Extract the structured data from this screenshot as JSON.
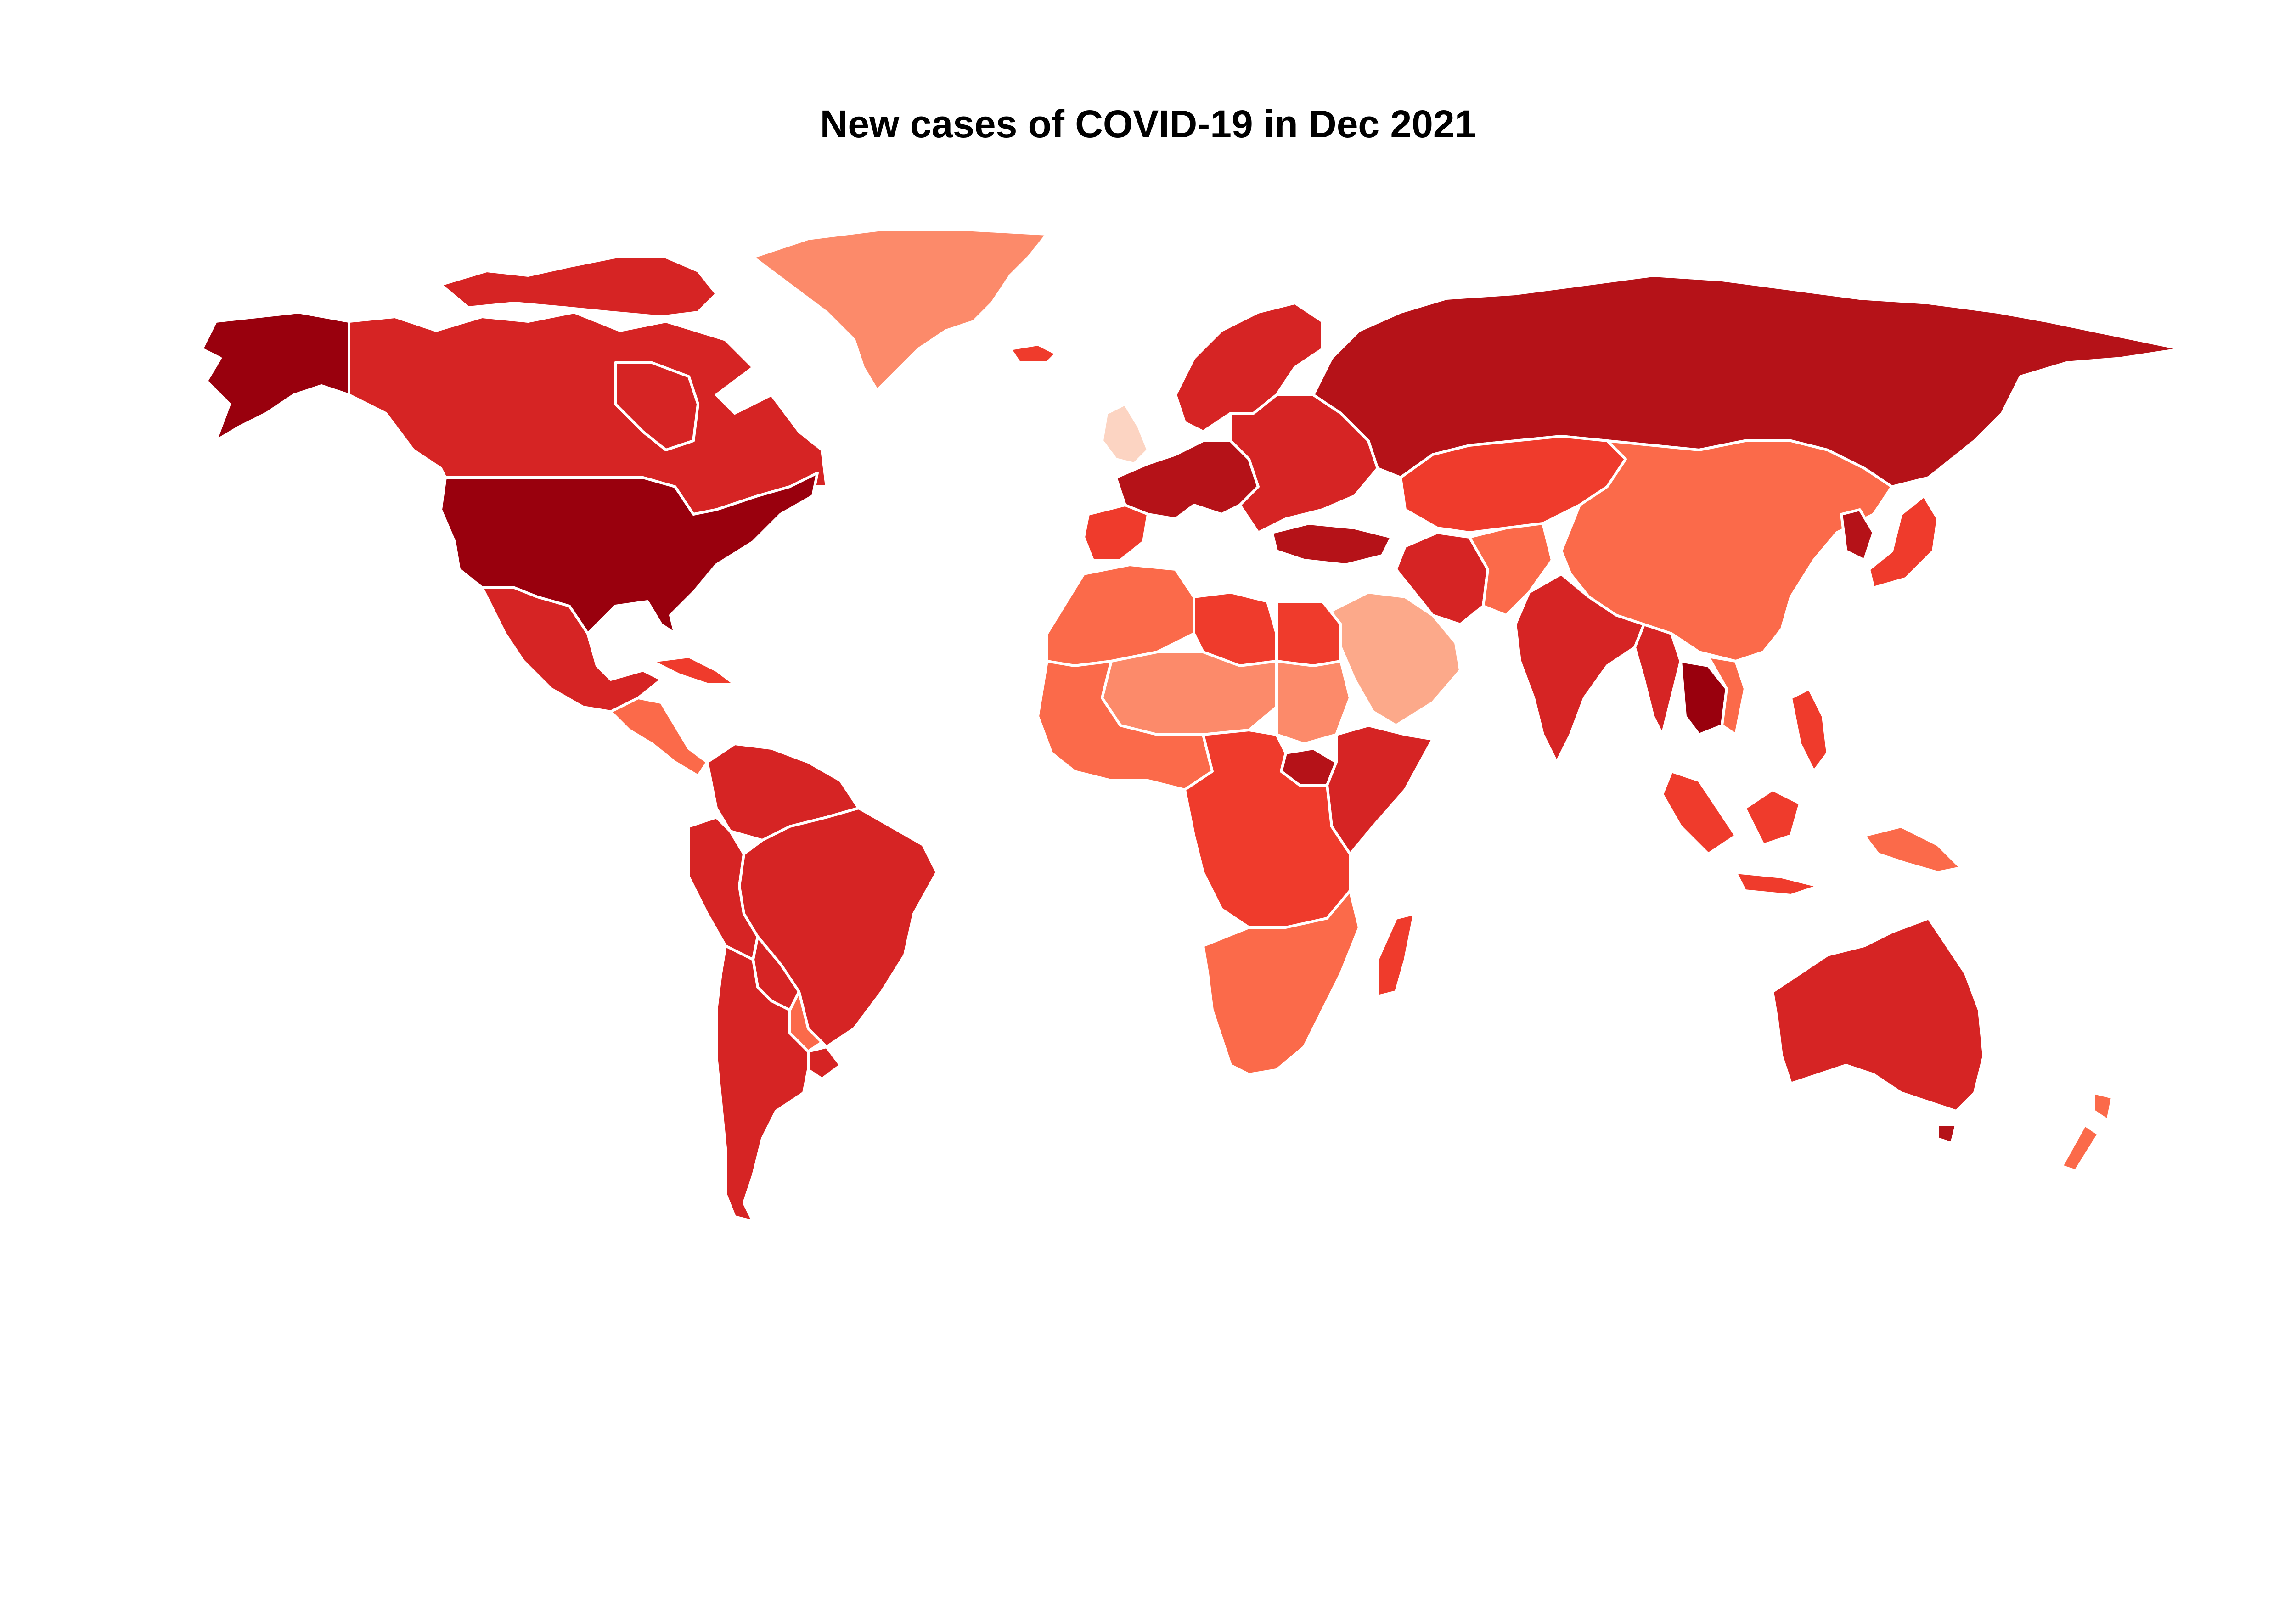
{
  "title": "New cases of COVID-19 in Dec 2021",
  "color_scale": [
    "#fcd4c2",
    "#fca98a",
    "#fc8a6a",
    "#fb6a4a",
    "#ef3b2c",
    "#d62424",
    "#b51218",
    "#99000d"
  ],
  "regions": [
    {
      "id": "alaska",
      "level": 7
    },
    {
      "id": "canada",
      "level": 5
    },
    {
      "id": "canada-islands",
      "level": 5
    },
    {
      "id": "greenland",
      "level": 2
    },
    {
      "id": "iceland",
      "level": 4
    },
    {
      "id": "usa",
      "level": 7
    },
    {
      "id": "mexico",
      "level": 5
    },
    {
      "id": "cuba",
      "level": 4
    },
    {
      "id": "central-america",
      "level": 3
    },
    {
      "id": "colombia-venezuela",
      "level": 5
    },
    {
      "id": "peru",
      "level": 5
    },
    {
      "id": "brazil",
      "level": 5
    },
    {
      "id": "bolivia",
      "level": 5
    },
    {
      "id": "paraguay",
      "level": 3
    },
    {
      "id": "argentina-chile",
      "level": 5
    },
    {
      "id": "uruguay",
      "level": 5
    },
    {
      "id": "uk",
      "level": 0
    },
    {
      "id": "scandinavia",
      "level": 5
    },
    {
      "id": "western-europe",
      "level": 6
    },
    {
      "id": "eastern-europe",
      "level": 5
    },
    {
      "id": "iberia",
      "level": 4
    },
    {
      "id": "turkey",
      "level": 6
    },
    {
      "id": "russia",
      "level": 6
    },
    {
      "id": "kazakhstan-central-asia",
      "level": 4
    },
    {
      "id": "mongolia-china",
      "level": 3
    },
    {
      "id": "japan",
      "level": 4
    },
    {
      "id": "korea",
      "level": 6
    },
    {
      "id": "iran",
      "level": 5
    },
    {
      "id": "arabia",
      "level": 1
    },
    {
      "id": "afghanistan-pakistan",
      "level": 3
    },
    {
      "id": "india",
      "level": 5
    },
    {
      "id": "southeast-asia",
      "level": 5
    },
    {
      "id": "thailand-cambodia",
      "level": 7
    },
    {
      "id": "vietnam",
      "level": 3
    },
    {
      "id": "malaysia-indonesia",
      "level": 4
    },
    {
      "id": "philippines",
      "level": 4
    },
    {
      "id": "new-guinea",
      "level": 3
    },
    {
      "id": "australia",
      "level": 5
    },
    {
      "id": "tasmania",
      "level": 6
    },
    {
      "id": "new-zealand",
      "level": 3
    },
    {
      "id": "north-africa-west",
      "level": 3
    },
    {
      "id": "libya",
      "level": 4
    },
    {
      "id": "egypt",
      "level": 4
    },
    {
      "id": "sahel",
      "level": 2
    },
    {
      "id": "sudan",
      "level": 2
    },
    {
      "id": "west-africa",
      "level": 3
    },
    {
      "id": "south-sudan",
      "level": 6
    },
    {
      "id": "horn-of-africa",
      "level": 5
    },
    {
      "id": "central-africa",
      "level": 4
    },
    {
      "id": "southern-africa",
      "level": 3
    },
    {
      "id": "madagascar",
      "level": 4
    }
  ]
}
